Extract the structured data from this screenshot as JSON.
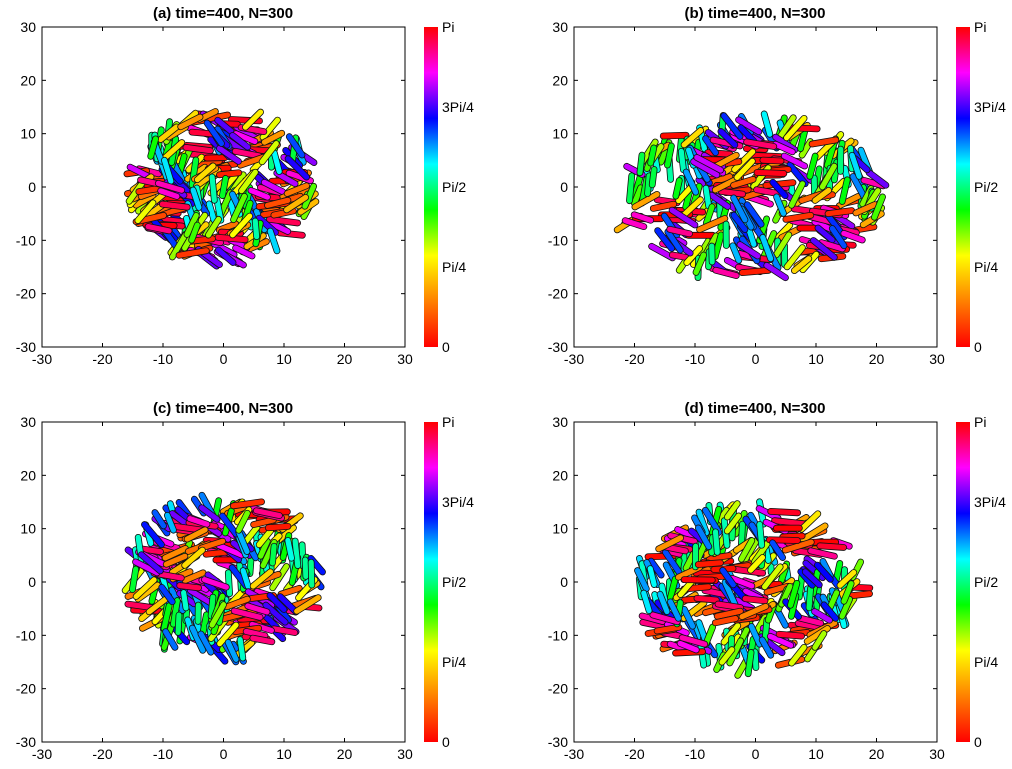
{
  "colormap_stops": [
    "#ff0000",
    "#ff8000",
    "#ffff00",
    "#00ff00",
    "#00ffff",
    "#0000ff",
    "#ff00ff",
    "#ff0000"
  ],
  "chart_data": [
    {
      "type": "scatter",
      "title": "(a) time=400, N=300",
      "xlim": [
        -30,
        30
      ],
      "ylim": [
        -30,
        30
      ],
      "xticks": [
        "-30",
        "-20",
        "-10",
        "0",
        "10",
        "20",
        "30"
      ],
      "yticks": [
        "-30",
        "-20",
        "-10",
        "0",
        "10",
        "20",
        "30"
      ],
      "grid": false,
      "colorbar": {
        "range": [
          0,
          3.14159
        ],
        "ticks": [
          "0",
          "Pi/4",
          "Pi/2",
          "3Pi/4",
          "Pi"
        ]
      },
      "colony": {
        "cx": 0,
        "cy": 0,
        "rx": 16,
        "ry": 15,
        "rods": 300,
        "seed": 11,
        "spread": 1.0
      }
    },
    {
      "type": "scatter",
      "title": "(b) time=400, N=300",
      "xlim": [
        -30,
        30
      ],
      "ylim": [
        -30,
        30
      ],
      "xticks": [
        "-30",
        "-20",
        "-10",
        "0",
        "10",
        "20",
        "30"
      ],
      "yticks": [
        "-30",
        "-20",
        "-10",
        "0",
        "10",
        "20",
        "30"
      ],
      "grid": false,
      "colorbar": {
        "range": [
          0,
          3.14159
        ],
        "ticks": [
          "0",
          "Pi/4",
          "Pi/2",
          "3Pi/4",
          "Pi"
        ]
      },
      "colony": {
        "cx": -1,
        "cy": -2,
        "rx": 20,
        "ry": 13,
        "rods": 300,
        "seed": 27,
        "spread": 1.2
      }
    },
    {
      "type": "scatter",
      "title": "(c) time=400, N=300",
      "xlim": [
        -30,
        30
      ],
      "ylim": [
        -30,
        30
      ],
      "xticks": [
        "-30",
        "-20",
        "-10",
        "0",
        "10",
        "20",
        "30"
      ],
      "yticks": [
        "-30",
        "-20",
        "-10",
        "0",
        "10",
        "20",
        "30"
      ],
      "grid": false,
      "colorbar": {
        "range": [
          0,
          3.14159
        ],
        "ticks": [
          "0",
          "Pi/4",
          "Pi/2",
          "3Pi/4",
          "Pi"
        ]
      },
      "colony": {
        "cx": 0,
        "cy": 1,
        "rx": 17,
        "ry": 16,
        "rods": 300,
        "seed": 53,
        "spread": 1.0
      }
    },
    {
      "type": "scatter",
      "title": "(d) time=400, N=300",
      "xlim": [
        -30,
        30
      ],
      "ylim": [
        -30,
        30
      ],
      "xticks": [
        "-30",
        "-20",
        "-10",
        "0",
        "10",
        "20",
        "30"
      ],
      "yticks": [
        "-30",
        "-20",
        "-10",
        "0",
        "10",
        "20",
        "30"
      ],
      "grid": false,
      "colorbar": {
        "range": [
          0,
          3.14159
        ],
        "ticks": [
          "0",
          "Pi/4",
          "Pi/2",
          "3Pi/4",
          "Pi"
        ]
      },
      "colony": {
        "cx": -1,
        "cy": -1,
        "rx": 18,
        "ry": 15,
        "rods": 300,
        "seed": 81,
        "spread": 1.1
      }
    }
  ]
}
